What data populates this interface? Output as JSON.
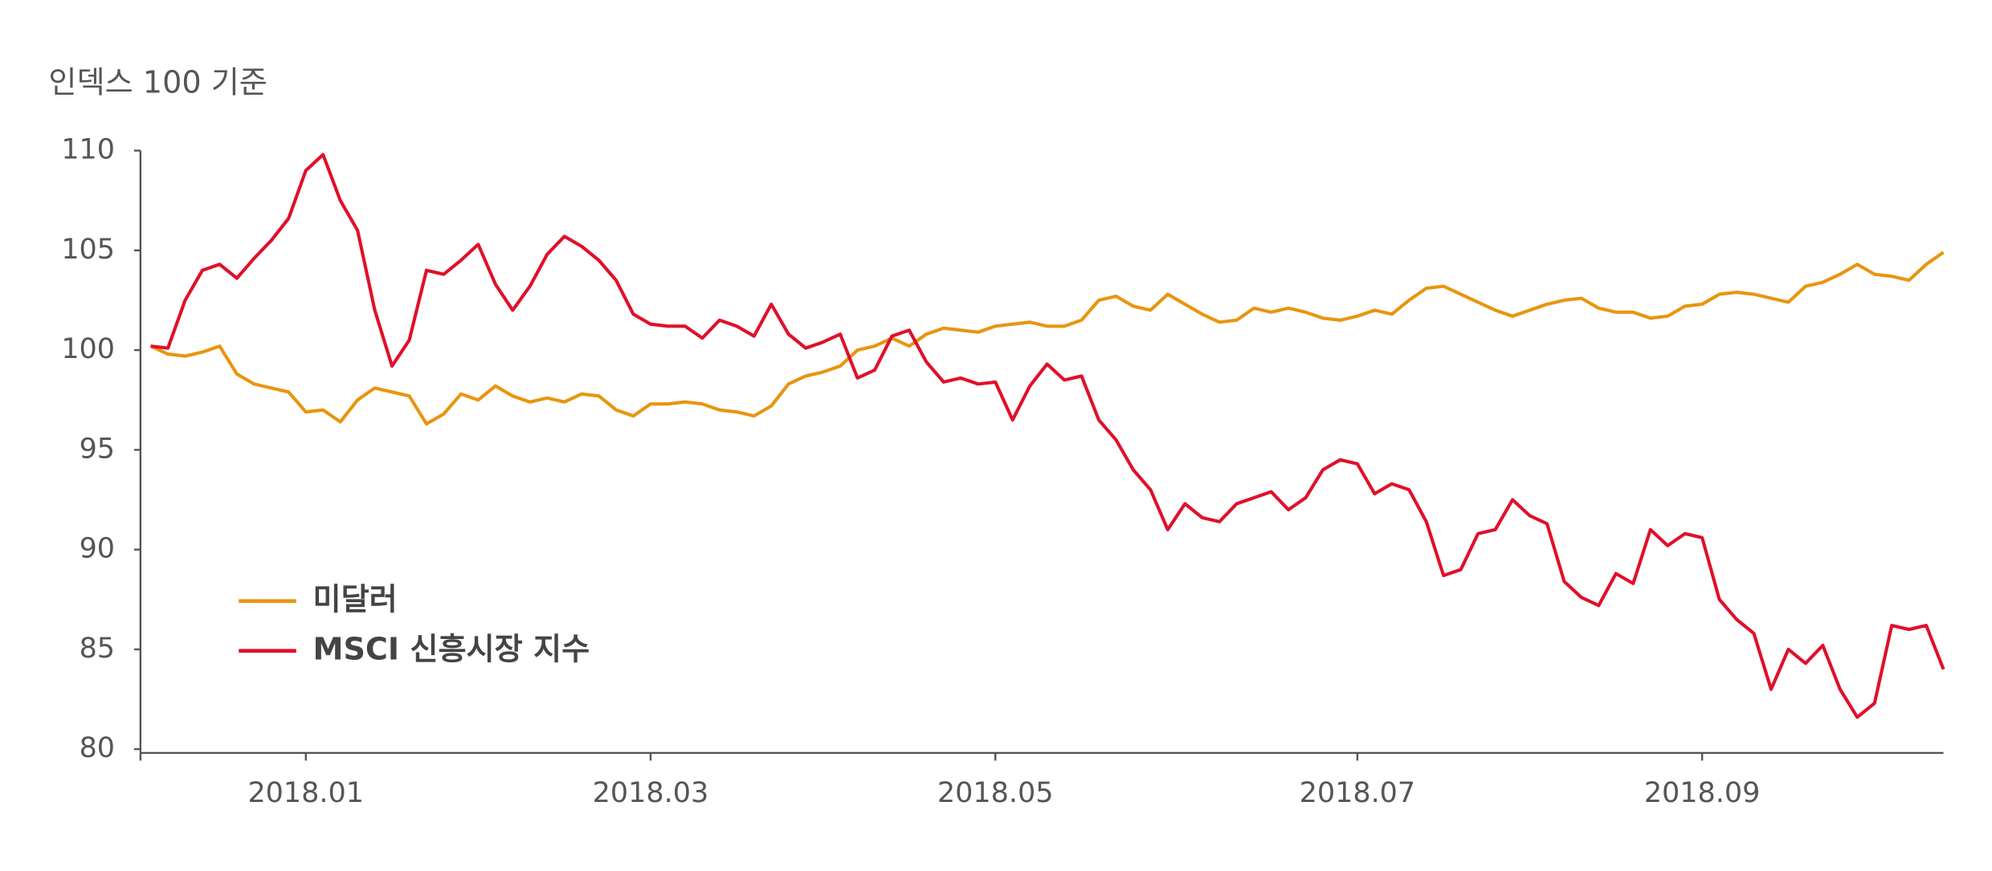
{
  "chart_data": {
    "type": "line",
    "ylabel": "인덱스 100 기준",
    "categories": [
      null,
      null,
      null,
      null,
      null,
      null,
      null,
      null,
      null,
      "2018.01",
      null,
      null,
      null,
      null,
      null,
      null,
      null,
      null,
      null,
      null,
      null,
      null,
      null,
      null,
      null,
      null,
      null,
      null,
      null,
      "2018.03",
      null,
      null,
      null,
      null,
      null,
      null,
      null,
      null,
      null,
      null,
      null,
      null,
      null,
      null,
      null,
      null,
      null,
      null,
      null,
      "2018.05",
      null,
      null,
      null,
      null,
      null,
      null,
      null,
      null,
      null,
      null,
      null,
      null,
      null,
      null,
      null,
      null,
      null,
      null,
      null,
      null,
      "2018.07",
      null,
      null,
      null,
      null,
      null,
      null,
      null,
      null,
      null,
      null,
      null,
      null,
      null,
      null,
      null,
      null,
      null,
      null,
      null,
      "2018.09",
      null,
      null,
      null,
      null,
      null,
      null,
      null,
      null,
      null,
      null,
      null,
      null,
      null,
      null
    ],
    "series": [
      {
        "name": "미달러",
        "color": "#e8950f",
        "values": [
          100.2,
          99.8,
          99.7,
          99.9,
          100.2,
          98.8,
          98.3,
          98.1,
          97.9,
          96.9,
          97.0,
          96.4,
          97.5,
          98.1,
          97.9,
          97.7,
          96.3,
          96.8,
          97.8,
          97.5,
          98.2,
          97.7,
          97.4,
          97.6,
          97.4,
          97.8,
          97.7,
          97.0,
          96.7,
          97.3,
          97.3,
          97.4,
          97.3,
          97.0,
          96.9,
          96.7,
          97.2,
          98.3,
          98.7,
          98.9,
          99.2,
          100.0,
          100.2,
          100.6,
          100.2,
          100.8,
          101.1,
          101.0,
          100.9,
          101.2,
          101.3,
          101.4,
          101.2,
          101.2,
          101.5,
          102.5,
          102.7,
          102.2,
          102.0,
          102.8,
          102.3,
          101.8,
          101.4,
          101.5,
          102.1,
          101.9,
          102.1,
          101.9,
          101.6,
          101.5,
          101.7,
          102.0,
          101.8,
          102.5,
          103.1,
          103.2,
          102.8,
          102.4,
          102.0,
          101.7,
          102.0,
          102.3,
          102.5,
          102.6,
          102.1,
          101.9,
          101.9,
          101.6,
          101.7,
          102.2,
          102.3,
          102.8,
          102.9,
          102.8,
          102.6,
          102.4,
          103.2,
          103.4,
          103.8,
          104.3,
          103.8,
          103.7,
          103.5,
          104.3,
          104.9
        ]
      },
      {
        "name": "MSCI 신흥시장 지수",
        "color": "#e0102a",
        "values": [
          100.2,
          100.1,
          102.5,
          104.0,
          104.3,
          103.6,
          104.6,
          105.5,
          106.6,
          109.0,
          109.8,
          107.5,
          106.0,
          102.0,
          99.2,
          100.5,
          104.0,
          103.8,
          104.5,
          105.3,
          103.3,
          102.0,
          103.2,
          104.8,
          105.7,
          105.2,
          104.5,
          103.5,
          101.8,
          101.3,
          101.2,
          101.2,
          100.6,
          101.5,
          101.2,
          100.7,
          102.3,
          100.8,
          100.1,
          100.4,
          100.8,
          98.6,
          99.0,
          100.7,
          101.0,
          99.4,
          98.4,
          98.6,
          98.3,
          98.4,
          96.5,
          98.2,
          99.3,
          98.5,
          98.7,
          96.5,
          95.5,
          94.0,
          93.0,
          91.0,
          92.3,
          91.6,
          91.4,
          92.3,
          92.6,
          92.9,
          92.0,
          92.6,
          94.0,
          94.5,
          94.3,
          92.8,
          93.3,
          93.0,
          91.4,
          88.7,
          89.0,
          90.8,
          91.0,
          92.5,
          91.7,
          91.3,
          88.4,
          87.6,
          87.2,
          88.8,
          88.3,
          91.0,
          90.2,
          90.8,
          90.6,
          87.5,
          86.5,
          85.8,
          83.0,
          85.0,
          84.3,
          85.2,
          83.0,
          81.6,
          82.3,
          86.2,
          86.0,
          86.2,
          84.0
        ]
      }
    ],
    "ylim": [
      80,
      110
    ],
    "yticks": [
      80,
      85,
      90,
      95,
      100,
      105,
      110
    ],
    "grid": false,
    "legend": "lower left"
  }
}
